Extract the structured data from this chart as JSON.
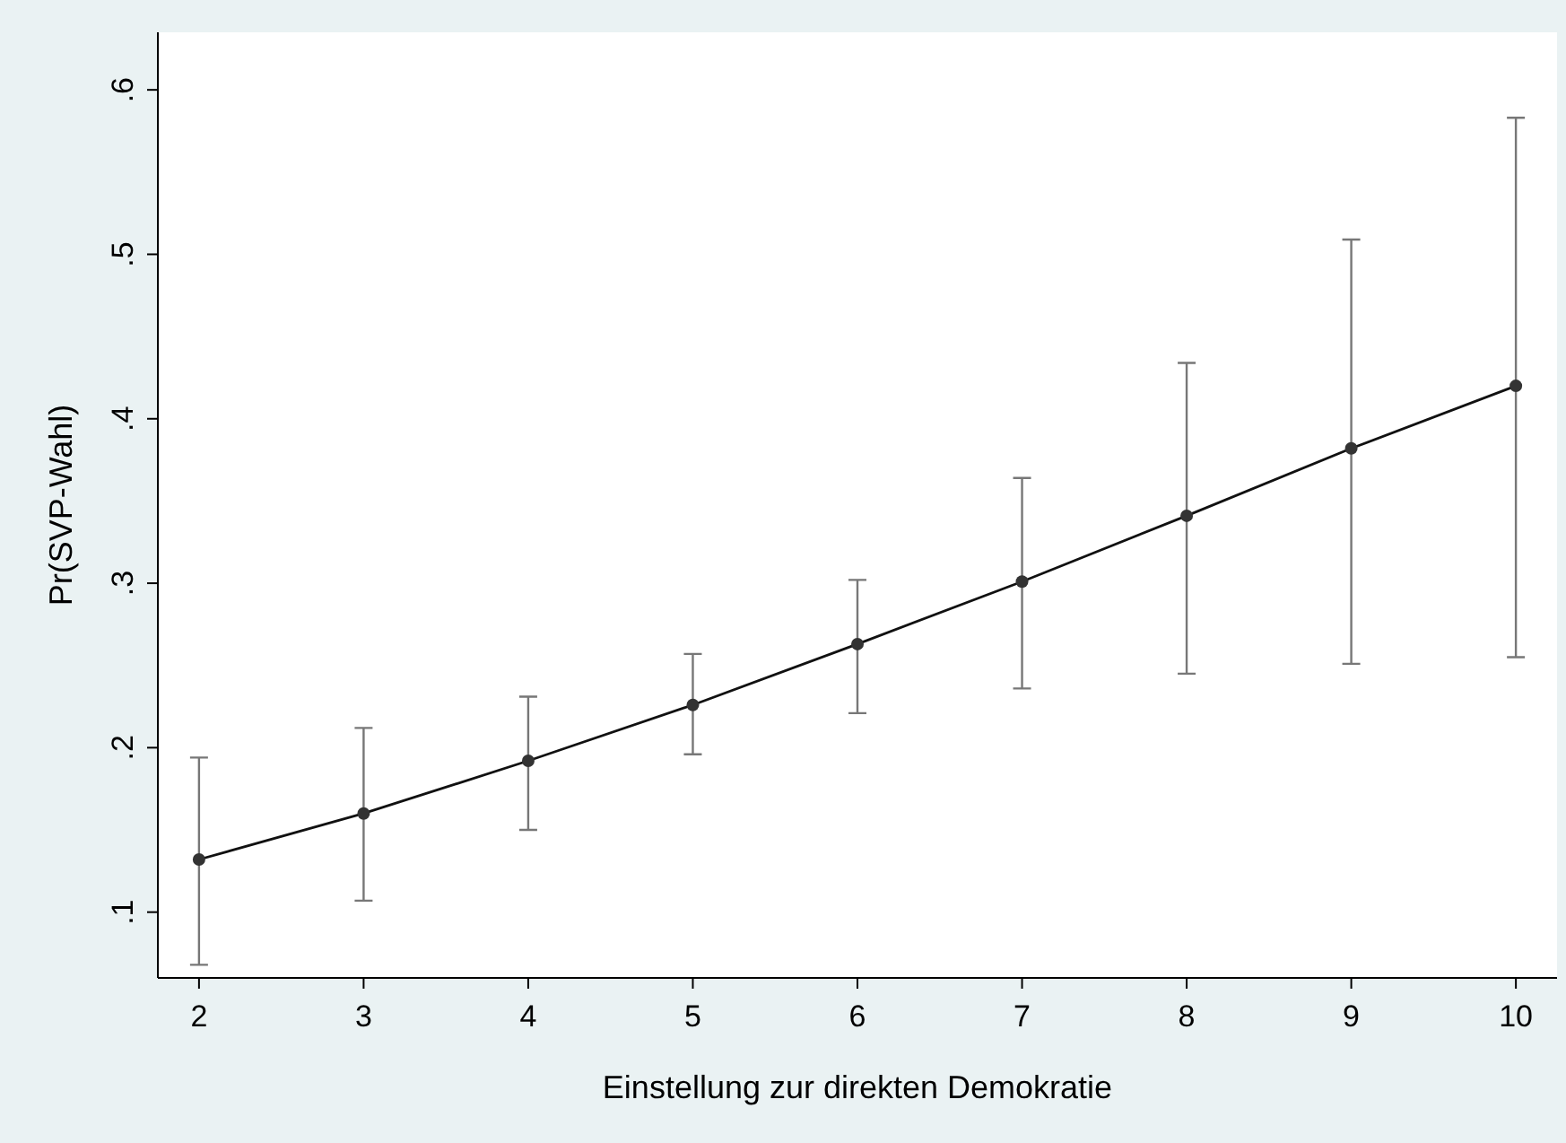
{
  "chart_data": {
    "type": "line",
    "xlabel": "Einstellung zur direkten Demokratie",
    "ylabel": "Pr(SVP-Wahl)",
    "x": [
      2,
      3,
      4,
      5,
      6,
      7,
      8,
      9,
      10
    ],
    "series": [
      {
        "color": "#333333",
        "values": [
          0.132,
          0.16,
          0.192,
          0.226,
          0.263,
          0.301,
          0.341,
          0.382,
          0.42
        ],
        "errors": [
          [
            0.068,
            0.194
          ],
          [
            0.107,
            0.212
          ],
          [
            0.15,
            0.231
          ],
          [
            0.196,
            0.257
          ],
          [
            0.221,
            0.302
          ],
          [
            0.236,
            0.364
          ],
          [
            0.245,
            0.434
          ],
          [
            0.251,
            0.509
          ],
          [
            0.255,
            0.583
          ]
        ]
      }
    ],
    "xlim": [
      1.75,
      10.25
    ],
    "xticks": [
      2,
      3,
      4,
      5,
      6,
      7,
      8,
      9,
      10
    ],
    "ylim": [
      0.06,
      0.635
    ],
    "yticks": [
      {
        "value": 0.1,
        "label": ".1"
      },
      {
        "value": 0.2,
        "label": ".2"
      },
      {
        "value": 0.3,
        "label": ".3"
      },
      {
        "value": 0.4,
        "label": ".4"
      },
      {
        "value": 0.5,
        "label": ".5"
      },
      {
        "value": 0.6,
        "label": ".6"
      }
    ],
    "marker": "circle",
    "line_style": "solid"
  }
}
